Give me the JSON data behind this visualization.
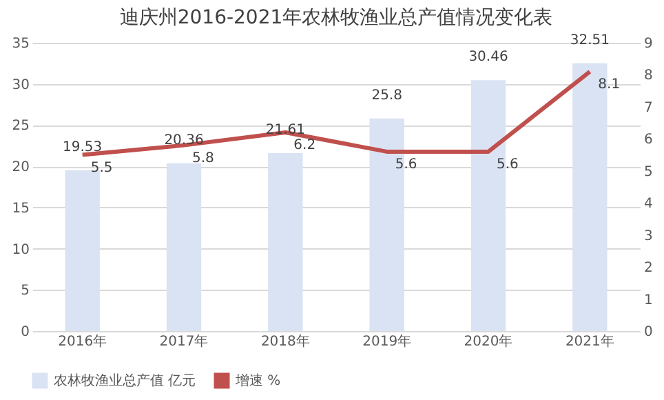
{
  "chart_data": {
    "type": "bar",
    "title": "迪庆州2016-2021年农林牧渔业总产值情况变化表",
    "categories": [
      "2016年",
      "2017年",
      "2018年",
      "2019年",
      "2020年",
      "2021年"
    ],
    "series": [
      {
        "name": "农林牧渔业总产值 亿元",
        "color": "#dae3f3",
        "values": [
          19.53,
          20.36,
          21.61,
          25.8,
          30.46,
          32.51
        ]
      },
      {
        "name": "增速 %",
        "type": "line",
        "axis": "y2",
        "color": "#c0504d",
        "values": [
          5.5,
          5.8,
          6.2,
          5.6,
          5.6,
          8.1
        ]
      }
    ],
    "ylim": [
      0,
      35
    ],
    "yticks": [
      0,
      5,
      10,
      15,
      20,
      25,
      30,
      35
    ],
    "y2lim": [
      0,
      9
    ],
    "y2ticks": [
      0,
      1,
      2,
      3,
      4,
      5,
      6,
      7,
      8,
      9
    ],
    "grid": "y",
    "legend": "bottom",
    "data_labels": true,
    "marker": "none",
    "line_style": "solid"
  }
}
